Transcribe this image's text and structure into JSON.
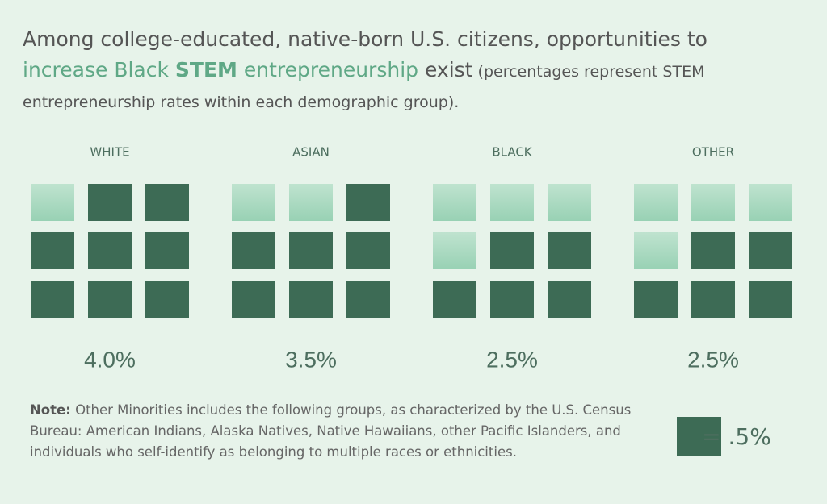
{
  "chart_data": {
    "type": "waffle",
    "title_parts": [
      "Among college-educated, native-born U.S. citizens, opportunities to ",
      "increase Black ",
      "STEM",
      " entrepreneurship",
      " exist",
      " (percentages represent STEM entrepreneurship rates within each demographic group)."
    ],
    "categories": [
      "WHITE",
      "ASIAN",
      "BLACK",
      "OTHER"
    ],
    "values": [
      4.0,
      3.5,
      2.5,
      2.5
    ],
    "value_labels": [
      "4.0%",
      "3.5%",
      "2.5%",
      "2.5%"
    ],
    "unit": {
      "value": 0.5,
      "label": "= .5%"
    },
    "cells_per_group": 9,
    "color": "#3d6b55",
    "empty_color": "#a9d9c0",
    "note_label": "Note:",
    "note": "Other Minorities includes the following groups, as characterized by the U.S. Census Bureau: American Indians, Alaska Natives, Native Hawaiians, other Pacific Islanders, and individuals who self-identify as belonging to multiple races or ethnicities."
  }
}
